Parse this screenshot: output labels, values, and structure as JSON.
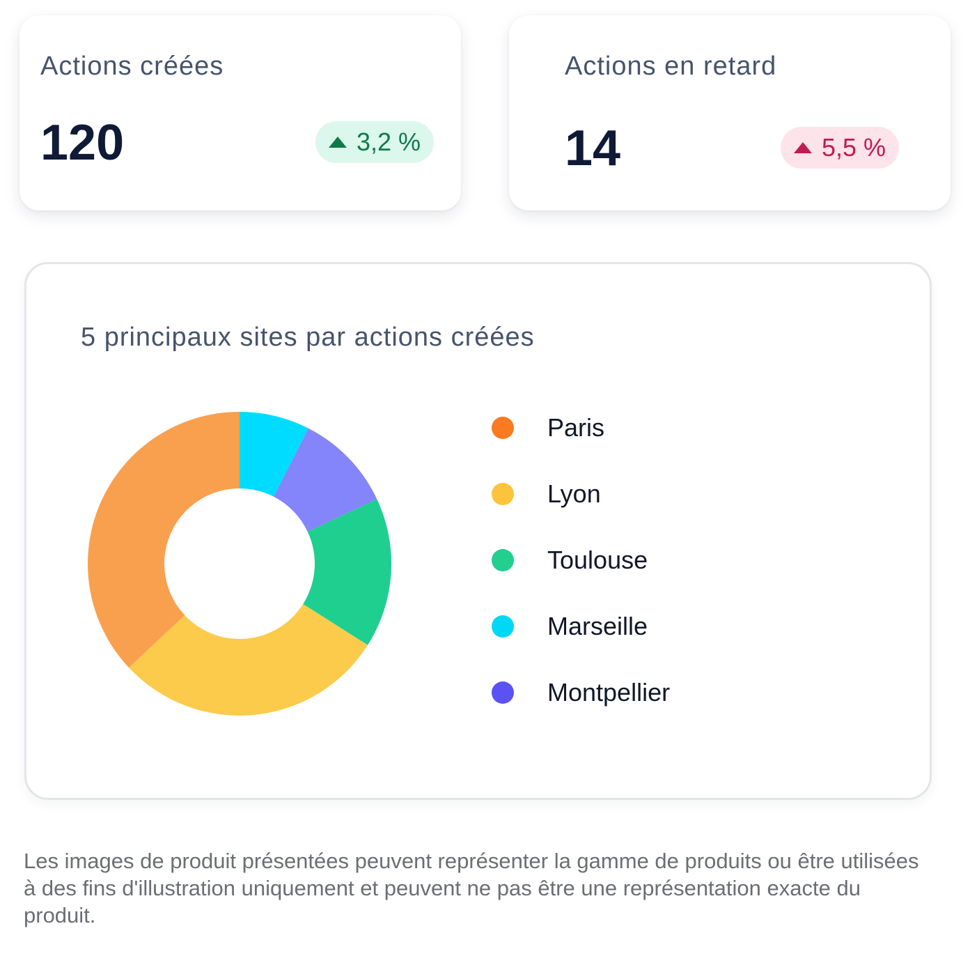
{
  "kpis": {
    "created": {
      "title": "Actions créées",
      "value": "120",
      "delta": "3,2 %",
      "delta_direction": "up",
      "delta_color": "#0e7a4a",
      "delta_bg": "#dcf8ec"
    },
    "late": {
      "title": "Actions en retard",
      "value": "14",
      "delta": "5,5 %",
      "delta_direction": "up",
      "delta_color": "#c21a52",
      "delta_bg": "#fde3ea"
    }
  },
  "chart": {
    "title": "5 principaux sites par actions créées"
  },
  "chart_data": {
    "type": "pie",
    "variant": "donut",
    "title": "5 principaux sites par actions créées",
    "legend_position": "right",
    "legend": [
      {
        "label": "Paris",
        "color": "#f97a1f"
      },
      {
        "label": "Lyon",
        "color": "#fbc43a"
      },
      {
        "label": "Toulouse",
        "color": "#22cf8e"
      },
      {
        "label": "Marseille",
        "color": "#00d8f5"
      },
      {
        "label": "Montpellier",
        "color": "#5b52f5"
      }
    ],
    "slices": [
      {
        "label": "Marseille",
        "value": 7.5,
        "color": "#00dcff"
      },
      {
        "label": "Montpellier",
        "value": 10.5,
        "color": "#8484fb"
      },
      {
        "label": "Toulouse",
        "value": 16,
        "color": "#1ecf8f"
      },
      {
        "label": "Lyon",
        "value": 29,
        "color": "#fccb4c"
      },
      {
        "label": "Paris",
        "value": 37,
        "color": "#f9a04e"
      }
    ]
  },
  "footer": {
    "disclaimer": "Les images de produit présentées peuvent représenter la gamme de produits ou être utilisées à des fins d'illustration uniquement et peuvent ne pas être une représentation exacte du produit."
  }
}
